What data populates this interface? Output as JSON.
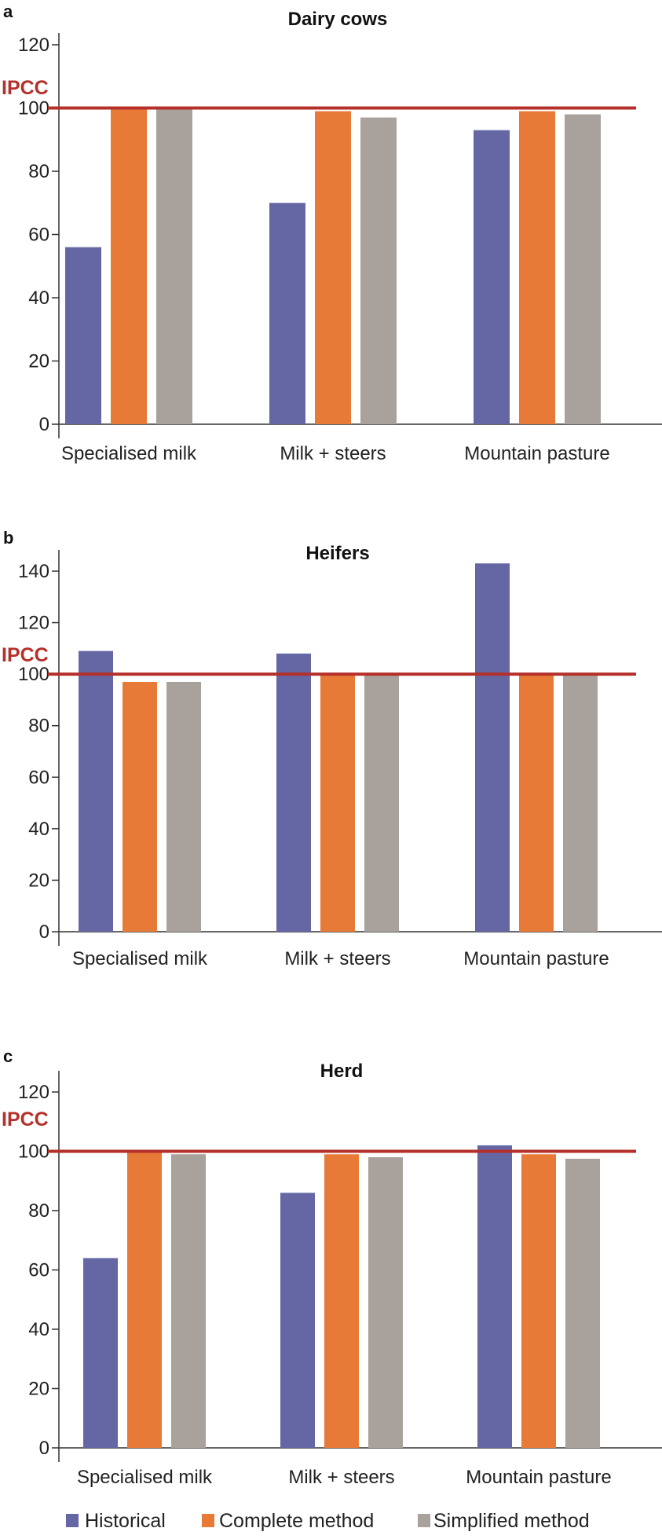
{
  "colors": {
    "Historical": "#6567a5",
    "Complete method": "#e87a38",
    "Simplified method": "#a9a19c",
    "reference": "#b5302a"
  },
  "legend": [
    "Historical",
    "Complete method",
    "Simplified method"
  ],
  "chart_data": [
    {
      "type": "bar",
      "panel_letter": "a",
      "title": "Dairy cows",
      "categories": [
        "Specialised milk",
        "Milk + steers",
        "Mountain pasture"
      ],
      "series": [
        {
          "name": "Historical",
          "values": [
            56,
            70,
            93
          ]
        },
        {
          "name": "Complete method",
          "values": [
            100,
            99,
            99
          ]
        },
        {
          "name": "Simplified method",
          "values": [
            100,
            97,
            98
          ]
        }
      ],
      "reference_line": {
        "label": "IPCC",
        "value": 100
      },
      "ylim": [
        0,
        120
      ],
      "yticks": [
        0,
        20,
        40,
        60,
        80,
        100,
        120
      ],
      "grid": false
    },
    {
      "type": "bar",
      "panel_letter": "b",
      "title": "Heifers",
      "categories": [
        "Specialised milk",
        "Milk + steers",
        "Mountain pasture"
      ],
      "series": [
        {
          "name": "Historical",
          "values": [
            109,
            108,
            143
          ]
        },
        {
          "name": "Complete method",
          "values": [
            97,
            100,
            100
          ]
        },
        {
          "name": "Simplified method",
          "values": [
            97,
            100,
            100
          ]
        }
      ],
      "reference_line": {
        "label": "IPCC",
        "value": 100
      },
      "ylim": [
        0,
        140
      ],
      "yticks": [
        0,
        20,
        40,
        60,
        80,
        100,
        120,
        140
      ],
      "grid": false
    },
    {
      "type": "bar",
      "panel_letter": "c",
      "title": "Herd",
      "categories": [
        "Specialised milk",
        "Milk + steers",
        "Mountain pasture"
      ],
      "series": [
        {
          "name": "Historical",
          "values": [
            64,
            86,
            102
          ]
        },
        {
          "name": "Complete method",
          "values": [
            100,
            99,
            99
          ]
        },
        {
          "name": "Simplified method",
          "values": [
            99,
            98,
            97.5
          ]
        }
      ],
      "reference_line": {
        "label": "IPCC",
        "value": 100
      },
      "ylim": [
        0,
        120
      ],
      "yticks": [
        0,
        20,
        40,
        60,
        80,
        100,
        120
      ],
      "grid": false
    }
  ]
}
